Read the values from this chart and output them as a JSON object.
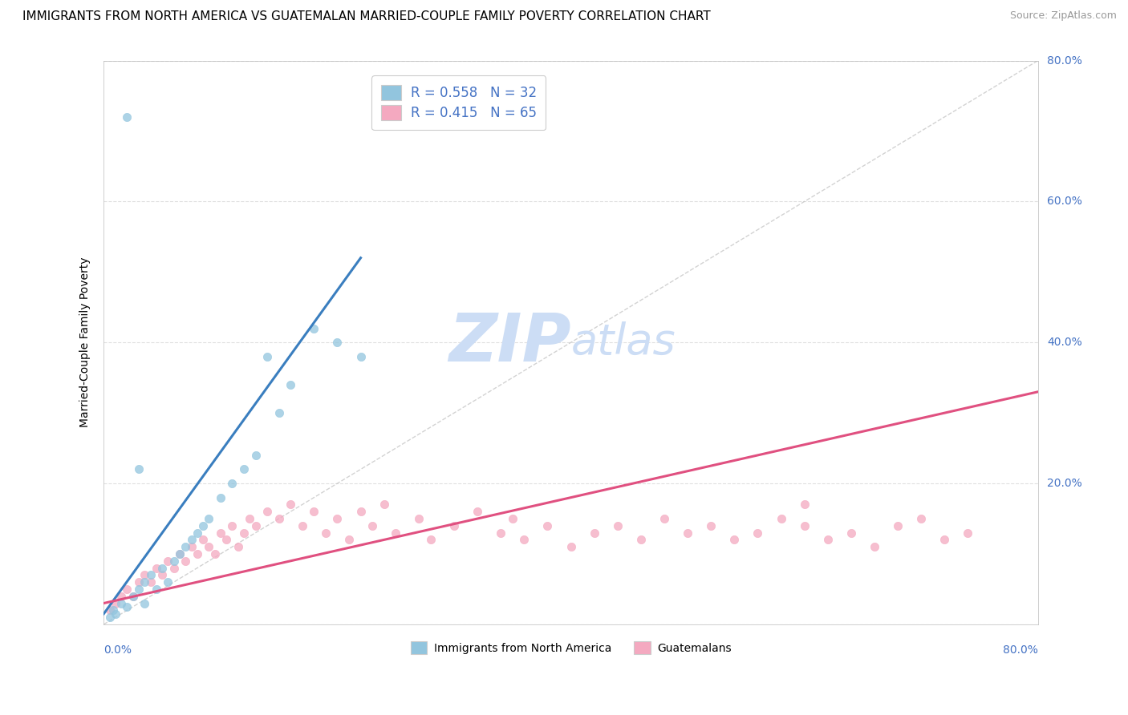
{
  "title": "IMMIGRANTS FROM NORTH AMERICA VS GUATEMALAN MARRIED-COUPLE FAMILY POVERTY CORRELATION CHART",
  "source": "Source: ZipAtlas.com",
  "ylabel": "Married-Couple Family Poverty",
  "legend1_label": "R = 0.558   N = 32",
  "legend2_label": "R = 0.415   N = 65",
  "legend_bottom1": "Immigrants from North America",
  "legend_bottom2": "Guatemalans",
  "blue_color": "#92c5de",
  "pink_color": "#f4a9c0",
  "blue_line_color": "#3a7ebf",
  "pink_line_color": "#e05080",
  "diagonal_color": "#c0c0c0",
  "watermark_color": "#ccddf5",
  "background_color": "#ffffff",
  "grid_color": "#e0e0e0",
  "blue_text_color": "#4472c4",
  "blue_scatter_x": [
    0.5,
    0.8,
    1.0,
    1.5,
    2.0,
    2.5,
    3.0,
    3.5,
    3.5,
    4.0,
    4.5,
    5.0,
    5.5,
    6.0,
    6.5,
    7.0,
    7.5,
    8.0,
    8.5,
    9.0,
    10.0,
    11.0,
    12.0,
    13.0,
    14.0,
    15.0,
    16.0,
    18.0,
    20.0,
    22.0,
    3.0,
    2.0
  ],
  "blue_scatter_y": [
    1.0,
    2.0,
    1.5,
    3.0,
    2.5,
    4.0,
    5.0,
    6.0,
    3.0,
    7.0,
    5.0,
    8.0,
    6.0,
    9.0,
    10.0,
    11.0,
    12.0,
    13.0,
    14.0,
    15.0,
    18.0,
    20.0,
    22.0,
    24.0,
    38.0,
    30.0,
    34.0,
    42.0,
    40.0,
    38.0,
    22.0,
    72.0
  ],
  "pink_scatter_x": [
    0.5,
    1.0,
    1.5,
    2.0,
    2.5,
    3.0,
    3.5,
    4.0,
    4.5,
    5.0,
    5.5,
    6.0,
    6.5,
    7.0,
    7.5,
    8.0,
    8.5,
    9.0,
    9.5,
    10.0,
    10.5,
    11.0,
    11.5,
    12.0,
    12.5,
    13.0,
    14.0,
    15.0,
    16.0,
    17.0,
    18.0,
    19.0,
    20.0,
    21.0,
    22.0,
    23.0,
    24.0,
    25.0,
    27.0,
    28.0,
    30.0,
    32.0,
    34.0,
    35.0,
    36.0,
    38.0,
    40.0,
    42.0,
    44.0,
    46.0,
    48.0,
    50.0,
    52.0,
    54.0,
    56.0,
    58.0,
    60.0,
    62.0,
    64.0,
    66.0,
    68.0,
    70.0,
    72.0,
    74.0,
    60.0
  ],
  "pink_scatter_y": [
    2.0,
    3.0,
    4.0,
    5.0,
    4.0,
    6.0,
    7.0,
    6.0,
    8.0,
    7.0,
    9.0,
    8.0,
    10.0,
    9.0,
    11.0,
    10.0,
    12.0,
    11.0,
    10.0,
    13.0,
    12.0,
    14.0,
    11.0,
    13.0,
    15.0,
    14.0,
    16.0,
    15.0,
    17.0,
    14.0,
    16.0,
    13.0,
    15.0,
    12.0,
    16.0,
    14.0,
    17.0,
    13.0,
    15.0,
    12.0,
    14.0,
    16.0,
    13.0,
    15.0,
    12.0,
    14.0,
    11.0,
    13.0,
    14.0,
    12.0,
    15.0,
    13.0,
    14.0,
    12.0,
    13.0,
    15.0,
    14.0,
    12.0,
    13.0,
    11.0,
    14.0,
    15.0,
    12.0,
    13.0,
    17.0
  ],
  "blue_line_x0": 0.0,
  "blue_line_y0": 1.5,
  "blue_line_x1": 22.0,
  "blue_line_y1": 52.0,
  "pink_line_x0": 0.0,
  "pink_line_y0": 3.0,
  "pink_line_x1": 80.0,
  "pink_line_y1": 33.0,
  "xlim": [
    0,
    80
  ],
  "ylim": [
    0,
    80
  ],
  "title_fontsize": 11,
  "source_fontsize": 9,
  "axis_label_fontsize": 10,
  "tick_fontsize": 10,
  "watermark_fontsize": 60,
  "scatter_size": 55,
  "scatter_alpha": 0.75
}
